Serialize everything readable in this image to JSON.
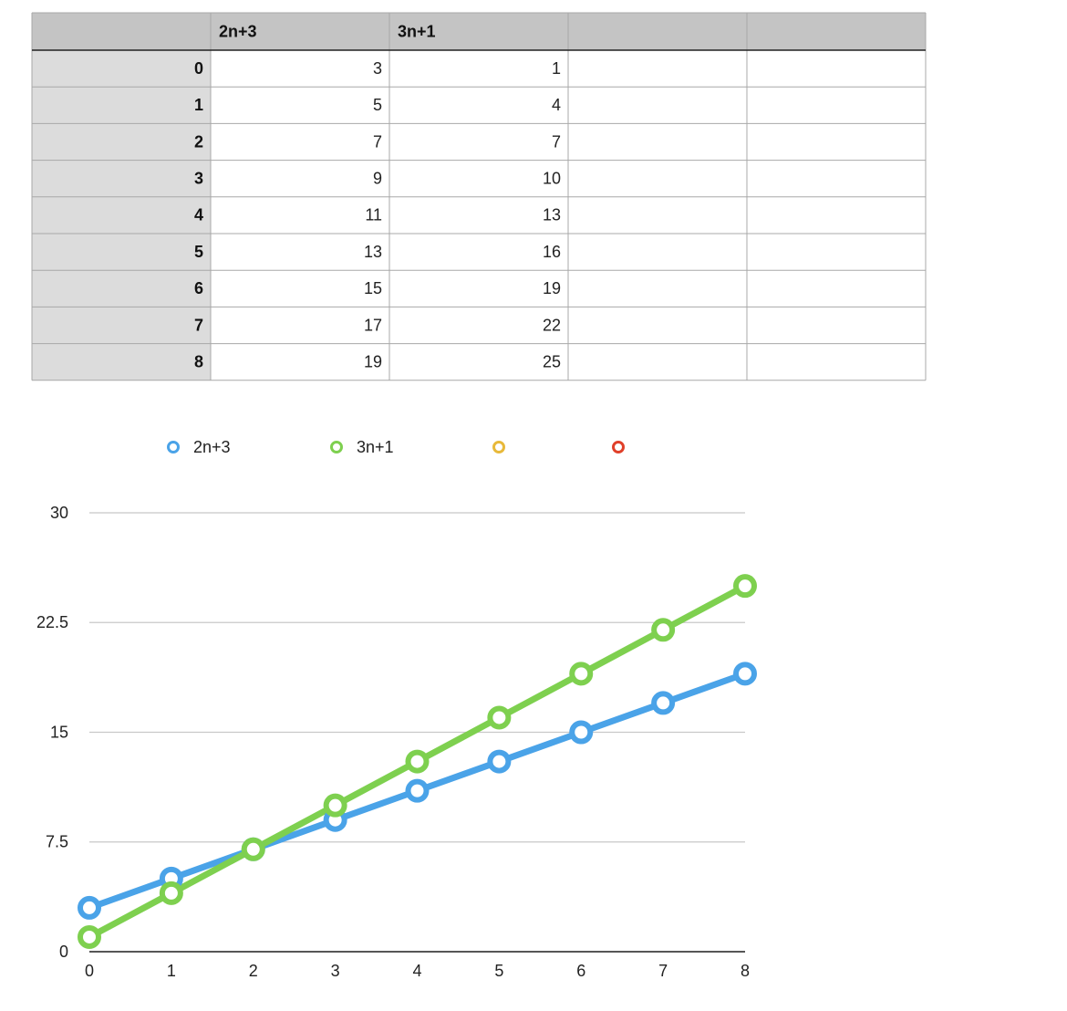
{
  "table": {
    "columns": [
      null,
      "2n+3",
      "3n+1",
      null,
      null
    ],
    "rows": [
      [
        0,
        3,
        1
      ],
      [
        1,
        5,
        4
      ],
      [
        2,
        7,
        7
      ],
      [
        3,
        9,
        10
      ],
      [
        4,
        11,
        13
      ],
      [
        5,
        13,
        16
      ],
      [
        6,
        15,
        19
      ],
      [
        7,
        17,
        22
      ],
      [
        8,
        19,
        25
      ]
    ]
  },
  "chart_data": {
    "type": "line",
    "x": [
      0,
      1,
      2,
      3,
      4,
      5,
      6,
      7,
      8
    ],
    "series": [
      {
        "name": "2n+3",
        "color": "#4aa3e8",
        "values": [
          3,
          5,
          7,
          9,
          11,
          13,
          15,
          17,
          19
        ]
      },
      {
        "name": "3n+1",
        "color": "#7ed04f",
        "values": [
          1,
          4,
          7,
          10,
          13,
          16,
          19,
          22,
          25
        ]
      },
      {
        "color": "#e8b93a",
        "values": [
          null,
          null,
          null,
          null,
          null,
          null,
          null,
          null,
          null
        ]
      },
      {
        "color": "#e0402a",
        "values": [
          null,
          null,
          null,
          null,
          null,
          null,
          null,
          null,
          null
        ]
      }
    ],
    "xlim": [
      0,
      8
    ],
    "xticks": [
      0,
      1,
      2,
      3,
      4,
      5,
      6,
      7,
      8
    ],
    "ylim": [
      0,
      30
    ],
    "yticks": [
      0,
      7.5,
      15,
      22.5,
      30
    ],
    "grid": true
  }
}
